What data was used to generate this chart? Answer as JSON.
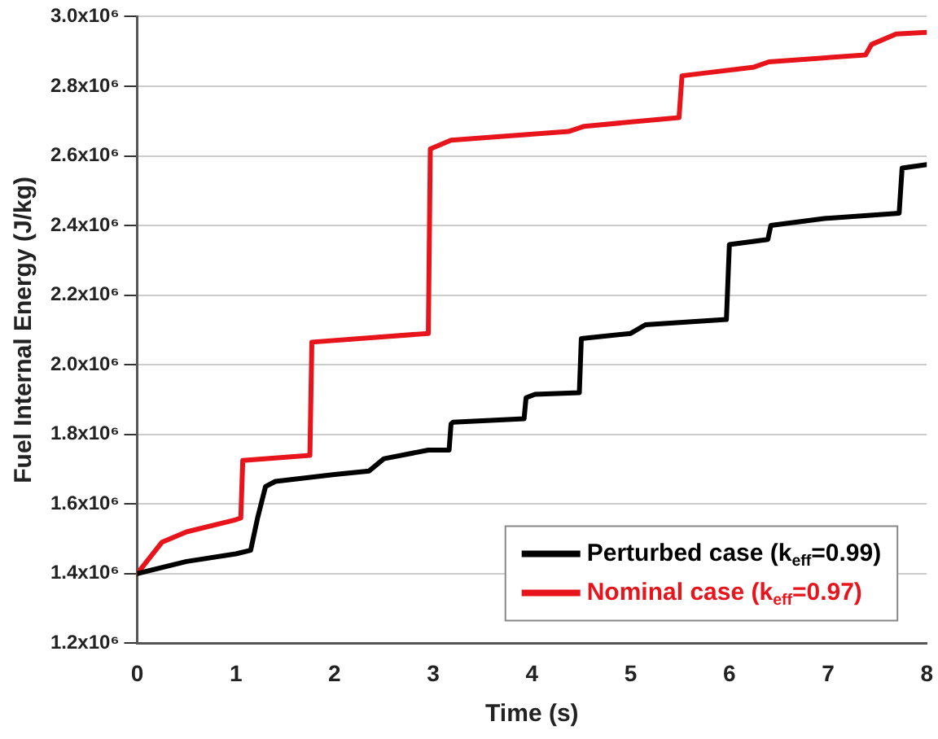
{
  "chart_data": {
    "type": "line",
    "xlabel": "Time (s)",
    "ylabel": "Fuel Internal Energy (J/kg)",
    "xlim": [
      0,
      8
    ],
    "xticks": [
      0,
      1,
      2,
      3,
      4,
      5,
      6,
      7,
      8
    ],
    "ylim": [
      1200000,
      3000000
    ],
    "yticks": [
      {
        "value": 1200000,
        "label": "1.2x10⁶"
      },
      {
        "value": 1400000,
        "label": "1.4x10⁶"
      },
      {
        "value": 1600000,
        "label": "1.6x10⁶"
      },
      {
        "value": 1800000,
        "label": "1.8x10⁶"
      },
      {
        "value": 2000000,
        "label": "2.0x10⁶"
      },
      {
        "value": 2200000,
        "label": "2.2x10⁶"
      },
      {
        "value": 2400000,
        "label": "2.4x10⁶"
      },
      {
        "value": 2600000,
        "label": "2.6x10⁶"
      },
      {
        "value": 2800000,
        "label": "2.8x10⁶"
      },
      {
        "value": 3000000,
        "label": "3.0x10⁶"
      }
    ],
    "grid": "y",
    "legend": "bottom right",
    "marker": "none",
    "line_style": "solid",
    "series": [
      {
        "name": "Perturbed case (k$_{eff}$=0.99)",
        "color": "#000000",
        "x": [
          0,
          0.5,
          1.0,
          1.15,
          1.22,
          1.3,
          1.4,
          2.0,
          2.35,
          2.5,
          2.95,
          3.16,
          3.18,
          3.2,
          3.92,
          3.94,
          4.03,
          4.48,
          4.5,
          5.0,
          5.15,
          5.97,
          6.0,
          6.39,
          6.42,
          6.96,
          7.72,
          7.75,
          8.0
        ],
        "values": [
          1400000,
          1435000,
          1457000,
          1467000,
          1560000,
          1650000,
          1665000,
          1685000,
          1695000,
          1730000,
          1755000,
          1755000,
          1830000,
          1835000,
          1845000,
          1905000,
          1915000,
          1920000,
          2075000,
          2090000,
          2115000,
          2130000,
          2345000,
          2360000,
          2400000,
          2420000,
          2435000,
          2565000,
          2575000
        ]
      },
      {
        "name": "Nominal case (k$_{eff}$=0.97)",
        "color": "#e8141c",
        "x": [
          0,
          0.25,
          0.5,
          1.0,
          1.05,
          1.07,
          1.75,
          1.77,
          2.95,
          2.97,
          3.18,
          4.37,
          4.53,
          5.49,
          5.52,
          6.25,
          6.4,
          7.38,
          7.44,
          7.69,
          8.0
        ],
        "values": [
          1400000,
          1490000,
          1520000,
          1555000,
          1560000,
          1725000,
          1740000,
          2065000,
          2090000,
          2620000,
          2645000,
          2670000,
          2685000,
          2710000,
          2830000,
          2855000,
          2870000,
          2890000,
          2920000,
          2950000,
          2955000
        ]
      }
    ]
  }
}
